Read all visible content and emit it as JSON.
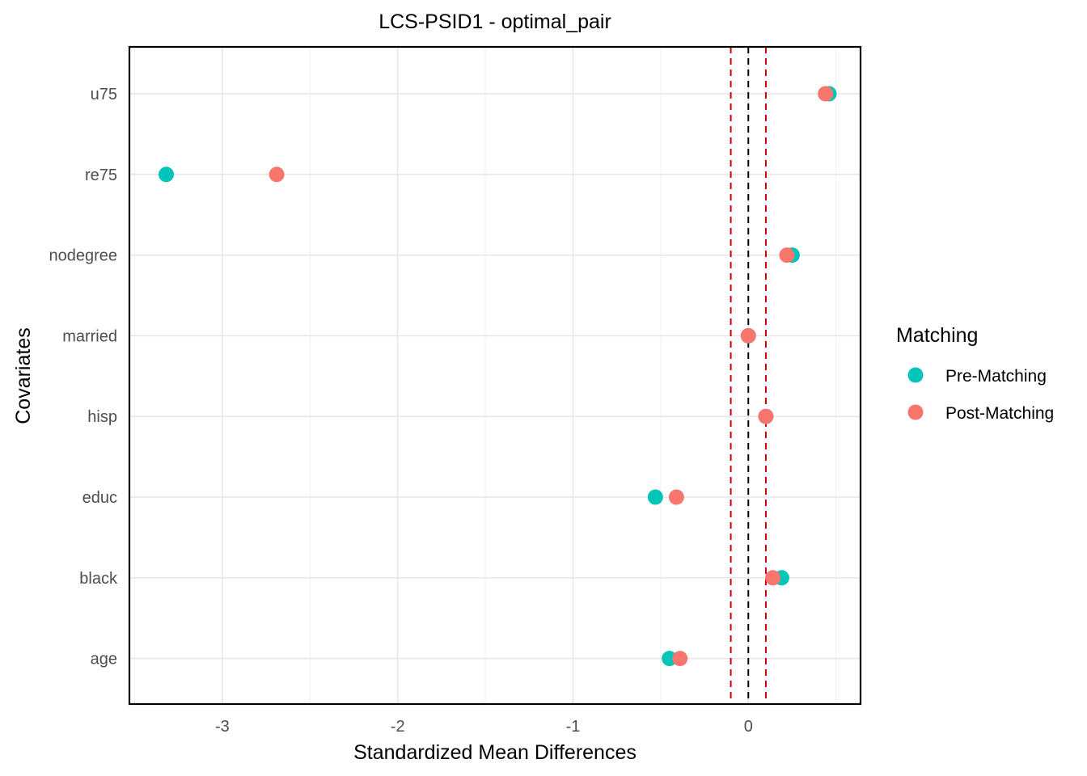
{
  "chart_data": {
    "type": "scatter",
    "title": "LCS-PSID1 - optimal_pair",
    "xlabel": "Standardized Mean Differences",
    "ylabel": "Covariates",
    "categories": [
      "u75",
      "re75",
      "nodegree",
      "married",
      "hisp",
      "educ",
      "black",
      "age"
    ],
    "xlim": [
      -3.53,
      0.64
    ],
    "x_ticks": [
      -3,
      -2,
      -1,
      0
    ],
    "x_tick_labels": [
      "-3",
      "-2",
      "-1",
      "0"
    ],
    "grid": true,
    "reference_lines": {
      "zero": {
        "x": 0,
        "color": "#000000",
        "style": "dashed"
      },
      "threshold": {
        "x": [
          -0.1,
          0.1
        ],
        "color": "#cc0000",
        "style": "dashed"
      }
    },
    "legend": {
      "title": "Matching",
      "position": "right"
    },
    "series": [
      {
        "name": "Pre-Matching",
        "color": "#00C5B8",
        "values": [
          0.46,
          -3.32,
          0.25,
          0.0,
          0.1,
          -0.53,
          0.19,
          -0.45
        ]
      },
      {
        "name": "Post-Matching",
        "color": "#F8766D",
        "values": [
          0.44,
          -2.69,
          0.22,
          0.0,
          0.1,
          -0.41,
          0.14,
          -0.39
        ]
      }
    ]
  }
}
